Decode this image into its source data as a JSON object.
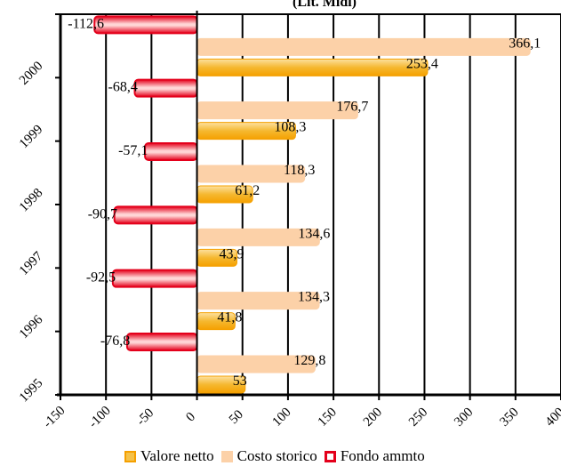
{
  "chart_data": {
    "type": "bar",
    "orientation": "horizontal",
    "title": "(Lit. Midl)",
    "categories": [
      "1995",
      "1996",
      "1997",
      "1998",
      "1999",
      "2000"
    ],
    "series": [
      {
        "name": "Valore netto",
        "color": "#f5a000",
        "values": [
          53,
          41.8,
          43.9,
          61.2,
          108.3,
          253.4
        ],
        "labels": [
          "53",
          "41,8",
          "43,9",
          "61,2",
          "108,3",
          "253,4"
        ]
      },
      {
        "name": "Costo storico",
        "color": "#fcd1a8",
        "values": [
          129.8,
          134.3,
          134.6,
          118.3,
          176.7,
          366.1
        ],
        "labels": [
          "129,8",
          "134,3",
          "134,6",
          "118,3",
          "176,7",
          "366,1"
        ]
      },
      {
        "name": "Fondo ammto",
        "color": "#e4001b",
        "values": [
          -76.8,
          -92.5,
          -90.7,
          -57.1,
          -68.4,
          -112.6
        ],
        "labels": [
          "-76,8",
          "-92,5",
          "-90,7",
          "-57,1",
          "-68,4",
          "-112,6"
        ]
      }
    ],
    "xlim": [
      -150,
      400
    ],
    "x_ticks": [
      "-150",
      "-100",
      "-50",
      "0",
      "50",
      "100",
      "150",
      "200",
      "250",
      "300",
      "350",
      "400"
    ],
    "grid": true,
    "legend_position": "bottom"
  }
}
